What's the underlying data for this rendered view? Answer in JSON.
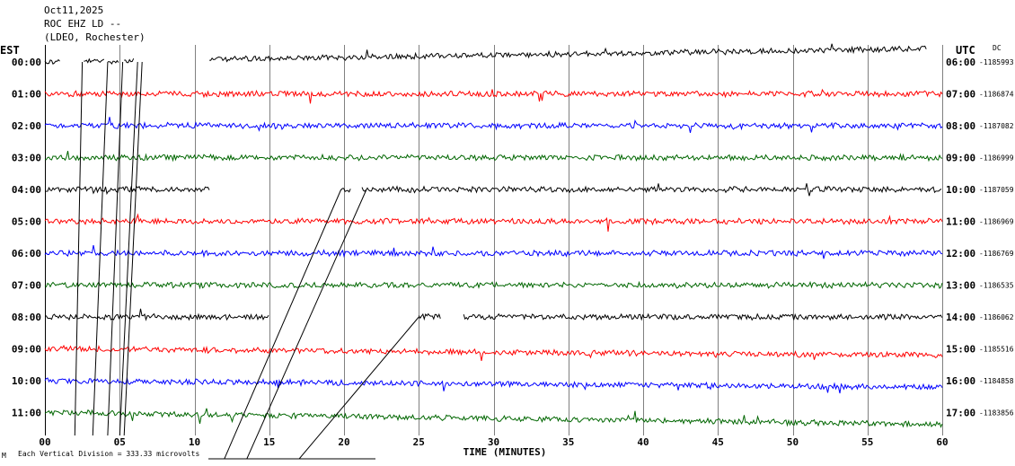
{
  "header": {
    "date": "Oct11,2025",
    "station": "ROC EHZ LD --",
    "network": "(LDEO, Rochester)"
  },
  "left_zone": "EST",
  "right_zone": "UTC",
  "dc_label": "DC",
  "footer": {
    "scale_note": "Each Vertical Division =  333.33 microvolts",
    "marker": "M"
  },
  "chart_data": {
    "type": "line",
    "title": "",
    "xlabel": "TIME (MINUTES)",
    "ylabel": "",
    "xlim": [
      0,
      60
    ],
    "x_ticks": [
      "00",
      "05",
      "10",
      "15",
      "20",
      "25",
      "30",
      "35",
      "40",
      "45",
      "50",
      "55",
      "60"
    ],
    "grid": "vertical",
    "colors": [
      "#000000",
      "#ff0000",
      "#0000ff",
      "#006600"
    ],
    "rows": [
      {
        "est": "00:00",
        "utc": "06:00",
        "dc": "-1185993"
      },
      {
        "est": "01:00",
        "utc": "07:00",
        "dc": "-1186874"
      },
      {
        "est": "02:00",
        "utc": "08:00",
        "dc": "-1187082"
      },
      {
        "est": "03:00",
        "utc": "09:00",
        "dc": "-1186999"
      },
      {
        "est": "04:00",
        "utc": "10:00",
        "dc": "-1187059"
      },
      {
        "est": "05:00",
        "utc": "11:00",
        "dc": "-1186969"
      },
      {
        "est": "06:00",
        "utc": "12:00",
        "dc": "-1186769"
      },
      {
        "est": "07:00",
        "utc": "13:00",
        "dc": "-1186535"
      },
      {
        "est": "08:00",
        "utc": "14:00",
        "dc": "-1186062"
      },
      {
        "est": "09:00",
        "utc": "15:00",
        "dc": "-1185516"
      },
      {
        "est": "10:00",
        "utc": "16:00",
        "dc": "-1184858"
      },
      {
        "est": "11:00",
        "utc": "17:00",
        "dc": "-1183856"
      }
    ]
  }
}
